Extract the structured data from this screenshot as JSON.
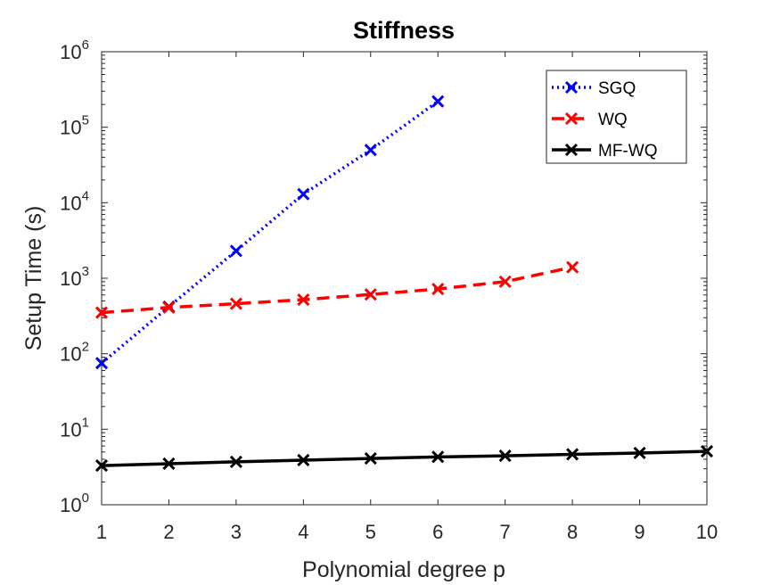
{
  "chart_data": {
    "type": "line",
    "title": "Stiffness",
    "xlabel": "Polynomial degree p",
    "ylabel": "Setup Time (s)",
    "xlim": [
      1,
      10
    ],
    "ylim": [
      1,
      1000000
    ],
    "yscale": "log",
    "grid": false,
    "legend_position": "top-right",
    "x_ticks": [
      {
        "value": 1,
        "label": "1"
      },
      {
        "value": 2,
        "label": "2"
      },
      {
        "value": 3,
        "label": "3"
      },
      {
        "value": 4,
        "label": "4"
      },
      {
        "value": 5,
        "label": "5"
      },
      {
        "value": 6,
        "label": "6"
      },
      {
        "value": 7,
        "label": "7"
      },
      {
        "value": 8,
        "label": "8"
      },
      {
        "value": 9,
        "label": "9"
      },
      {
        "value": 10,
        "label": "10"
      }
    ],
    "y_ticks": [
      {
        "value": 1,
        "base": "10",
        "exp": "0"
      },
      {
        "value": 10,
        "base": "10",
        "exp": "1"
      },
      {
        "value": 100,
        "base": "10",
        "exp": "2"
      },
      {
        "value": 1000,
        "base": "10",
        "exp": "3"
      },
      {
        "value": 10000,
        "base": "10",
        "exp": "4"
      },
      {
        "value": 100000,
        "base": "10",
        "exp": "5"
      },
      {
        "value": 1000000,
        "base": "10",
        "exp": "6"
      }
    ],
    "series": [
      {
        "name": "SGQ",
        "color": "#0000FF",
        "dash": "dotted",
        "marker": "x",
        "x": [
          1,
          2,
          3,
          4,
          5,
          6
        ],
        "values": [
          75,
          420,
          2300,
          13000,
          50000,
          220000
        ]
      },
      {
        "name": "WQ",
        "color": "#FF0000",
        "dash": "dashed",
        "marker": "x",
        "x": [
          1,
          2,
          3,
          4,
          5,
          6,
          7,
          8
        ],
        "values": [
          350,
          410,
          460,
          520,
          610,
          720,
          900,
          1400
        ]
      },
      {
        "name": "MF-WQ",
        "color": "#000000",
        "dash": "solid",
        "marker": "x",
        "x": [
          1,
          2,
          3,
          4,
          5,
          6,
          7,
          8,
          9,
          10
        ],
        "values": [
          3.3,
          3.5,
          3.7,
          3.9,
          4.1,
          4.3,
          4.45,
          4.65,
          4.85,
          5.1
        ]
      }
    ]
  }
}
